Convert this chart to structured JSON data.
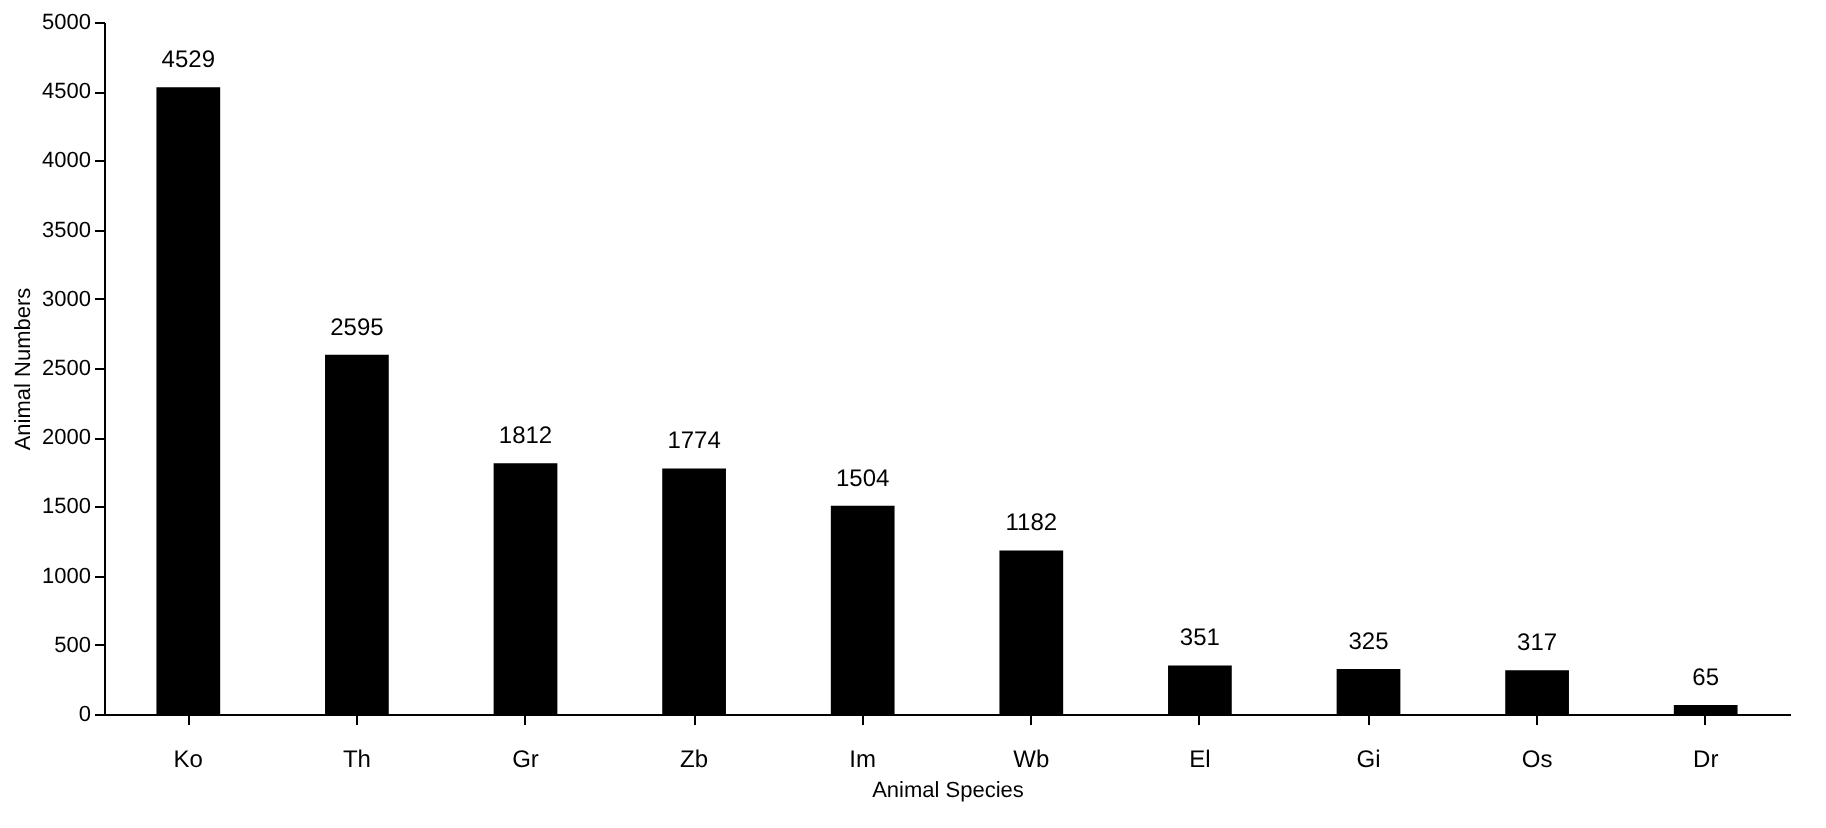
{
  "chart_data": {
    "type": "bar",
    "xlabel": "Animal Species",
    "ylabel": "Animal Numbers",
    "categories": [
      "Ko",
      "Th",
      "Gr",
      "Zb",
      "Im",
      "Wb",
      "El",
      "Gi",
      "Os",
      "Dr"
    ],
    "values": [
      4529,
      2595,
      1812,
      1774,
      1504,
      1182,
      351,
      325,
      317,
      65
    ],
    "color": "#000000",
    "ylim": [
      0,
      5000
    ],
    "yticks": [
      0,
      500,
      1000,
      1500,
      2000,
      2500,
      3000,
      3500,
      4000,
      4500,
      5000
    ],
    "grid": false,
    "data_labels": true
  }
}
